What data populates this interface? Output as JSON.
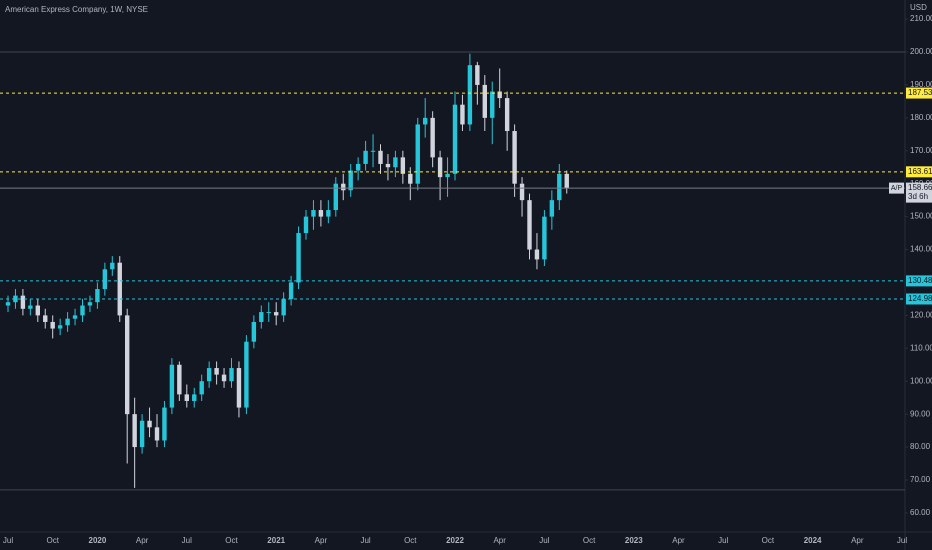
{
  "chart_data": {
    "type": "candlestick",
    "title": "American Express Company, 1W, NYSE",
    "currency": "USD",
    "categories": [
      "Jul",
      null,
      null,
      null,
      null,
      null,
      "Oct",
      null,
      null,
      null,
      null,
      null,
      "2020",
      null,
      null,
      null,
      null,
      null,
      "Apr",
      null,
      null,
      null,
      null,
      null,
      "Jul",
      null,
      null,
      null,
      null,
      null,
      "Oct",
      null,
      null,
      null,
      null,
      null,
      "2021",
      null,
      null,
      null,
      null,
      null,
      "Apr",
      null,
      null,
      null,
      null,
      null,
      "Jul",
      null,
      null,
      null,
      null,
      null,
      "Oct",
      null,
      null,
      null,
      null,
      null,
      "2022",
      null,
      null,
      null,
      null,
      null,
      "Apr",
      null,
      null,
      null,
      null,
      null,
      "Jul",
      null,
      null,
      null,
      null,
      null,
      "Oct",
      null,
      null,
      null,
      null,
      null,
      "2023",
      null,
      null,
      null,
      null,
      null,
      "Apr",
      null,
      null,
      null,
      null,
      null,
      "Jul",
      null,
      null,
      null,
      null,
      null,
      "Oct",
      null,
      null,
      null,
      null,
      null,
      "2024",
      null,
      null,
      null,
      null,
      null,
      "Apr",
      null,
      null,
      null,
      null,
      null,
      "Jul"
    ],
    "open": [
      123,
      124,
      126,
      122,
      123,
      120,
      118,
      116,
      117,
      119,
      120,
      123,
      124,
      128,
      134,
      136,
      120,
      90,
      80,
      88,
      86,
      82,
      92,
      105,
      96,
      94,
      96,
      100,
      104,
      102,
      100,
      104,
      92,
      112,
      118,
      121,
      121,
      120,
      125,
      130,
      145,
      150,
      152,
      150,
      152,
      160,
      158,
      164,
      166,
      170,
      170,
      166,
      165,
      168,
      163,
      160,
      178,
      180,
      168,
      162,
      163,
      184,
      178,
      196,
      190,
      180,
      188,
      186,
      176,
      160,
      155,
      140,
      137,
      150,
      155,
      163,
      null,
      null,
      null,
      null,
      null,
      null,
      null,
      null,
      null,
      null,
      null,
      null,
      null,
      null,
      null,
      null,
      null,
      null,
      null,
      null,
      null,
      null,
      null,
      null,
      null,
      null,
      null,
      null,
      null,
      null,
      null,
      null,
      null,
      null,
      null,
      null,
      null,
      null,
      null,
      null,
      null,
      null,
      null,
      null,
      null
    ],
    "high": [
      126,
      128,
      128,
      125,
      125,
      122,
      120,
      119,
      121,
      122,
      125,
      126,
      130,
      136,
      138,
      138,
      122,
      95,
      90,
      92,
      90,
      94,
      107,
      106,
      99,
      98,
      102,
      106,
      106,
      104,
      107,
      106,
      114,
      120,
      123,
      124,
      124,
      127,
      132,
      147,
      152,
      155,
      155,
      155,
      162,
      163,
      166,
      168,
      173,
      175,
      172,
      169,
      170,
      170,
      165,
      180,
      186,
      182,
      170,
      168,
      188,
      187,
      199.5,
      197,
      193,
      191,
      195,
      188,
      178,
      162,
      157,
      145,
      152,
      158,
      166,
      164,
      null,
      null,
      null,
      null,
      null,
      null,
      null,
      null,
      null,
      null,
      null,
      null,
      null,
      null,
      null,
      null,
      null,
      null,
      null,
      null,
      null,
      null,
      null,
      null,
      null,
      null,
      null,
      null,
      null,
      null,
      null,
      null,
      null,
      null,
      null,
      null,
      null,
      null,
      null,
      null,
      null,
      null,
      null,
      null,
      null
    ],
    "low": [
      121,
      122,
      120,
      120,
      118,
      116,
      113,
      114,
      115,
      117,
      118,
      121,
      122,
      126,
      132,
      118,
      75,
      67.6,
      78,
      83,
      80,
      80,
      90,
      94,
      92,
      92,
      94,
      98,
      99,
      98,
      98,
      89,
      90,
      110,
      116,
      118,
      117,
      118,
      123,
      128,
      143,
      146,
      147,
      148,
      150,
      155,
      156,
      161,
      164,
      165,
      163,
      161,
      162,
      160,
      155,
      158,
      174,
      165,
      155,
      156,
      161,
      176,
      176,
      184,
      176,
      172,
      183,
      170,
      156,
      150,
      137,
      134,
      135,
      146,
      152,
      157,
      null,
      null,
      null,
      null,
      null,
      null,
      null,
      null,
      null,
      null,
      null,
      null,
      null,
      null,
      null,
      null,
      null,
      null,
      null,
      null,
      null,
      null,
      null,
      null,
      null,
      null,
      null,
      null,
      null,
      null,
      null,
      null,
      null,
      null,
      null,
      null,
      null,
      null,
      null,
      null,
      null,
      null,
      null,
      null,
      null
    ],
    "close": [
      124,
      126,
      122,
      123,
      120,
      118,
      116,
      117,
      119,
      120,
      123,
      124,
      128,
      134,
      136,
      120,
      90,
      80,
      88,
      86,
      82,
      92,
      105,
      96,
      94,
      96,
      100,
      104,
      102,
      100,
      104,
      92,
      112,
      118,
      121,
      121,
      120,
      125,
      130,
      145,
      150,
      152,
      150,
      152,
      160,
      158,
      164,
      166,
      170,
      170,
      166,
      165,
      168,
      163,
      160,
      178,
      180,
      168,
      162,
      163,
      184,
      178,
      196,
      190,
      180,
      188,
      186,
      176,
      160,
      155,
      140,
      137,
      150,
      155,
      163,
      158.66,
      null,
      null,
      null,
      null,
      null,
      null,
      null,
      null,
      null,
      null,
      null,
      null,
      null,
      null,
      null,
      null,
      null,
      null,
      null,
      null,
      null,
      null,
      null,
      null,
      null,
      null,
      null,
      null,
      null,
      null,
      null,
      null,
      null,
      null,
      null,
      null,
      null,
      null,
      null,
      null,
      null,
      null,
      null,
      null,
      null
    ],
    "up_color": "#26c6da",
    "down_color": "#d1d4dc",
    "ylim": [
      54.2,
      215.8
    ],
    "yticks": [
      {
        "value": 60,
        "label": "60.00"
      },
      {
        "value": 70,
        "label": "70.00"
      },
      {
        "value": 80,
        "label": "80.00"
      },
      {
        "value": 90,
        "label": "90.00"
      },
      {
        "value": 100,
        "label": "100.00"
      },
      {
        "value": 110,
        "label": "110.00"
      },
      {
        "value": 120,
        "label": "120.00"
      },
      {
        "value": 130,
        "label": "130.00"
      },
      {
        "value": 140,
        "label": "140.00"
      },
      {
        "value": 150,
        "label": "150.00"
      },
      {
        "value": 160,
        "label": "160.00"
      },
      {
        "value": 170,
        "label": "170.00"
      },
      {
        "value": 180,
        "label": "180.00"
      },
      {
        "value": 190,
        "label": "190.00"
      },
      {
        "value": 200,
        "label": "200.00"
      },
      {
        "value": 210,
        "label": "210.00"
      }
    ],
    "levels": [
      {
        "value": 187.53,
        "color": "#ffeb3b"
      },
      {
        "value": 163.61,
        "color": "#ffeb3b"
      },
      {
        "value": 130.48,
        "color": "#26c6da"
      },
      {
        "value": 124.98,
        "color": "#26c6da"
      }
    ],
    "plain_lines": [
      200,
      67
    ],
    "last_price": {
      "value": 158.66,
      "symbol": "A/P",
      "countdown": "3d 6h"
    }
  }
}
